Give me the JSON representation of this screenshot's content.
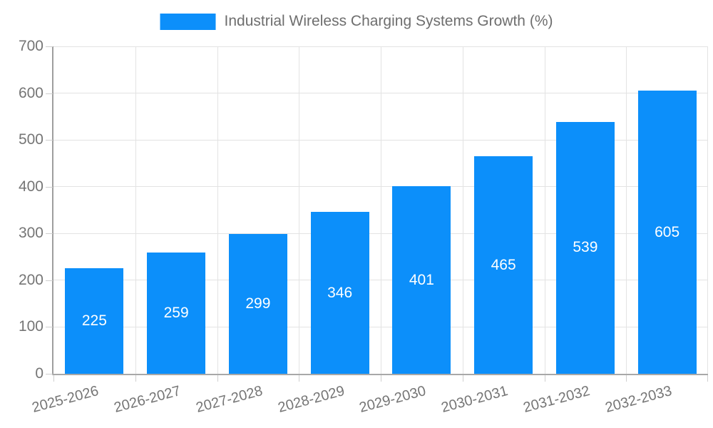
{
  "chart_data": {
    "type": "bar",
    "title": "Industrial Wireless Charging Systems Growth (%)",
    "categories": [
      "2025-2026",
      "2026-2027",
      "2027-2028",
      "2028-2029",
      "2029-2030",
      "2030-2031",
      "2031-2032",
      "2032-2033"
    ],
    "values": [
      225,
      259,
      299,
      346,
      401,
      465,
      539,
      605
    ],
    "yticks": [
      0,
      100,
      200,
      300,
      400,
      500,
      600,
      700
    ],
    "ylim": [
      0,
      700
    ],
    "xlabel": "",
    "ylabel": "",
    "grid": true,
    "legend_position": "top",
    "bar_color": "#0C8FFA",
    "value_label_color": "#ffffff",
    "tick_label_color": "#757575",
    "legend_text_color": "#6e6e6e",
    "gridline_color": "#e3e3e3"
  }
}
